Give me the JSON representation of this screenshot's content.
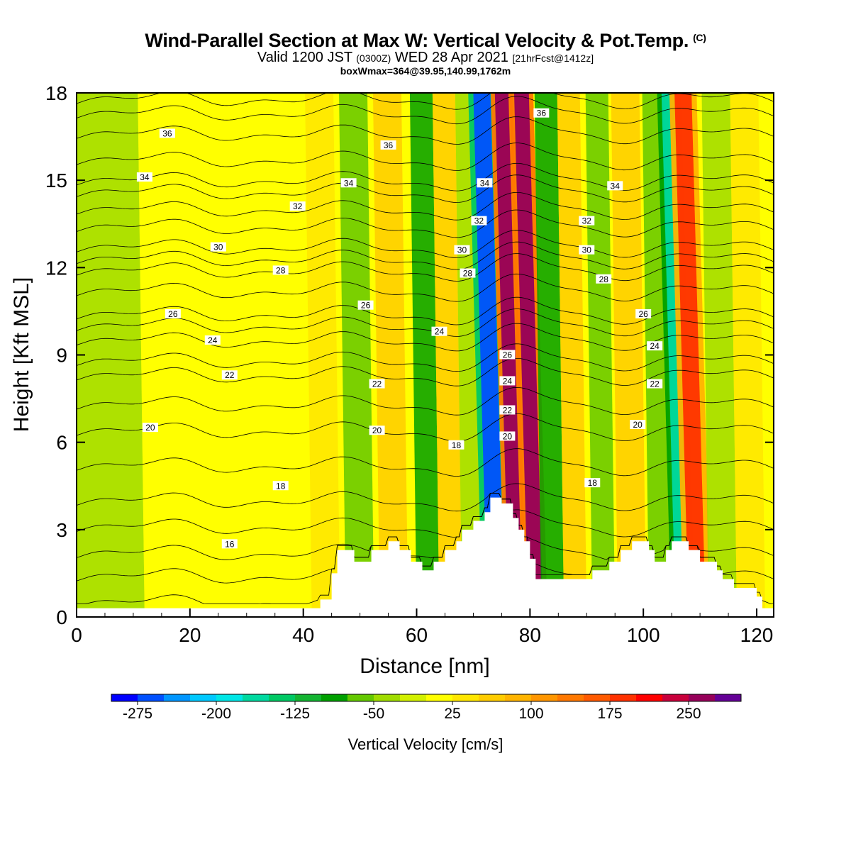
{
  "header": {
    "title": "Wind-Parallel Section at Max W: Vertical Velocity & Pot.Temp.",
    "title_mark": "(C)",
    "subtitle_a": "Valid 1200 JST",
    "subtitle_b": "(0300Z)",
    "subtitle_c": "WED 28 Apr 2021",
    "subtitle_d": "[21hrFcst@1412z]",
    "subtitle_line3": "boxWmax=364@39.95,140.99,1762m"
  },
  "chart_data": {
    "type": "heatmap",
    "xlabel": "Distance [nm]",
    "ylabel": "Height [Kft MSL]",
    "xlim": [
      0,
      123
    ],
    "ylim": [
      0,
      18
    ],
    "x_ticks": [
      0,
      20,
      40,
      60,
      80,
      100,
      120
    ],
    "y_ticks": [
      0,
      3,
      6,
      9,
      12,
      15,
      18
    ],
    "grid": false,
    "colorbar": {
      "label": "Vertical Velocity [cm/s]",
      "tick_labels": [
        "-275",
        "-200",
        "-125",
        "-50",
        "25",
        "100",
        "175",
        "250"
      ],
      "tick_values": [
        -275,
        -200,
        -125,
        -50,
        25,
        100,
        175,
        250
      ],
      "min": -300,
      "max": 275,
      "step": 25,
      "colors": [
        "#0000ff",
        "#0050ff",
        "#0096ff",
        "#00c8ff",
        "#00e6e6",
        "#00d9a0",
        "#00c864",
        "#14b432",
        "#00a000",
        "#64c800",
        "#a0dc00",
        "#d2f000",
        "#ffff00",
        "#ffe600",
        "#ffcc00",
        "#ffb400",
        "#ff9600",
        "#ff7800",
        "#ff5a00",
        "#ff3200",
        "#ff0000",
        "#c8003c",
        "#96005a",
        "#640096"
      ]
    },
    "velocity_bands": [
      {
        "x": 5,
        "width": 7,
        "w": -30
      },
      {
        "x": 16,
        "width": 4,
        "w": 8
      },
      {
        "x": 34,
        "width": 3,
        "w": 8
      },
      {
        "x": 44,
        "width": 2.5,
        "w": 45
      },
      {
        "x": 50,
        "width": 2.5,
        "w": -55
      },
      {
        "x": 56,
        "width": 2.5,
        "w": 60
      },
      {
        "x": 62,
        "width": 2,
        "w": -90
      },
      {
        "x": 66,
        "width": 2,
        "w": 65
      },
      {
        "x": 70,
        "width": 2,
        "w": -45
      },
      {
        "x": 74,
        "width": 1.5,
        "w": -260
      },
      {
        "x": 77.5,
        "width": 1.2,
        "w": 260
      },
      {
        "x": 81,
        "width": 1.3,
        "w": 250
      },
      {
        "x": 84,
        "width": 2,
        "w": -90
      },
      {
        "x": 88,
        "width": 2,
        "w": 50
      },
      {
        "x": 93,
        "width": 2,
        "w": -70
      },
      {
        "x": 98,
        "width": 2.5,
        "w": 55
      },
      {
        "x": 103,
        "width": 2,
        "w": -60
      },
      {
        "x": 107,
        "width": 1.3,
        "w": -170
      },
      {
        "x": 109.5,
        "width": 1.5,
        "w": 180
      },
      {
        "x": 114,
        "width": 2.5,
        "w": -40
      },
      {
        "x": 119,
        "width": 2.5,
        "w": 45
      }
    ],
    "terrain": [
      [
        0,
        0.3
      ],
      [
        43,
        0.3
      ],
      [
        43,
        0.6
      ],
      [
        45,
        0.6
      ],
      [
        45,
        1.5
      ],
      [
        46,
        1.5
      ],
      [
        46,
        2.3
      ],
      [
        49,
        2.3
      ],
      [
        49,
        1.9
      ],
      [
        52,
        1.9
      ],
      [
        52,
        2.3
      ],
      [
        55,
        2.3
      ],
      [
        55,
        2.6
      ],
      [
        57,
        2.6
      ],
      [
        57,
        2.3
      ],
      [
        59,
        2.3
      ],
      [
        59,
        1.9
      ],
      [
        61,
        1.9
      ],
      [
        61,
        1.6
      ],
      [
        63,
        1.6
      ],
      [
        63,
        1.9
      ],
      [
        65,
        1.9
      ],
      [
        65,
        2.3
      ],
      [
        67,
        2.3
      ],
      [
        67,
        2.6
      ],
      [
        68,
        2.6
      ],
      [
        68,
        3.0
      ],
      [
        70,
        3.0
      ],
      [
        70,
        3.3
      ],
      [
        72,
        3.3
      ],
      [
        72,
        3.6
      ],
      [
        73,
        3.6
      ],
      [
        73,
        4.1
      ],
      [
        75,
        4.1
      ],
      [
        75,
        3.9
      ],
      [
        77,
        3.9
      ],
      [
        77,
        3.4
      ],
      [
        78,
        3.4
      ],
      [
        78,
        3.0
      ],
      [
        79,
        3.0
      ],
      [
        79,
        2.6
      ],
      [
        80,
        2.6
      ],
      [
        80,
        2.0
      ],
      [
        81,
        2.0
      ],
      [
        81,
        1.3
      ],
      [
        91,
        1.3
      ],
      [
        91,
        1.6
      ],
      [
        94,
        1.6
      ],
      [
        94,
        1.9
      ],
      [
        96,
        1.9
      ],
      [
        96,
        2.3
      ],
      [
        98,
        2.3
      ],
      [
        98,
        2.6
      ],
      [
        101,
        2.6
      ],
      [
        101,
        2.3
      ],
      [
        102,
        2.3
      ],
      [
        102,
        1.9
      ],
      [
        104,
        1.9
      ],
      [
        104,
        2.3
      ],
      [
        105,
        2.3
      ],
      [
        105,
        2.6
      ],
      [
        108,
        2.6
      ],
      [
        108,
        2.3
      ],
      [
        110,
        2.3
      ],
      [
        110,
        1.9
      ],
      [
        113,
        1.9
      ],
      [
        113,
        1.6
      ],
      [
        114,
        1.6
      ],
      [
        114,
        1.3
      ],
      [
        116,
        1.3
      ],
      [
        116,
        1.0
      ],
      [
        120,
        1.0
      ],
      [
        120,
        0.7
      ],
      [
        121,
        0.7
      ],
      [
        121,
        0.3
      ],
      [
        123,
        0.3
      ]
    ],
    "isentropes": [
      {
        "theta": 14,
        "h": 0.5
      },
      {
        "theta": 15,
        "h": 1.4
      },
      {
        "theta": 16,
        "h": 2.2
      },
      {
        "theta": 17,
        "h": 3.1
      },
      {
        "theta": 18,
        "h": 4.0
      },
      {
        "theta": 19,
        "h": 5.2
      },
      {
        "theta": 20,
        "h": 6.4
      },
      {
        "theta": 21,
        "h": 7.3
      },
      {
        "theta": 22,
        "h": 8.3
      },
      {
        "theta": 23,
        "h": 8.8
      },
      {
        "theta": 24,
        "h": 9.5
      },
      {
        "theta": 25,
        "h": 10.0
      },
      {
        "theta": 26,
        "h": 10.4
      },
      {
        "theta": 27,
        "h": 11.2
      },
      {
        "theta": 28,
        "h": 11.9
      },
      {
        "theta": 29,
        "h": 12.3
      },
      {
        "theta": 30,
        "h": 12.7
      },
      {
        "theta": 31,
        "h": 13.4
      },
      {
        "theta": 32,
        "h": 14.0
      },
      {
        "theta": 33,
        "h": 14.6
      },
      {
        "theta": 34,
        "h": 15.0
      },
      {
        "theta": 35,
        "h": 15.7
      },
      {
        "theta": 36,
        "h": 16.6
      },
      {
        "theta": 37,
        "h": 17.3
      },
      {
        "theta": 38,
        "h": 17.8
      }
    ],
    "contour_labels": [
      {
        "text": "36",
        "x": 16,
        "y": 16.6
      },
      {
        "text": "36",
        "x": 55,
        "y": 16.2
      },
      {
        "text": "36",
        "x": 82,
        "y": 17.3
      },
      {
        "text": "34",
        "x": 12,
        "y": 15.1
      },
      {
        "text": "34",
        "x": 48,
        "y": 14.9
      },
      {
        "text": "34",
        "x": 72,
        "y": 14.9
      },
      {
        "text": "34",
        "x": 95,
        "y": 14.8
      },
      {
        "text": "32",
        "x": 39,
        "y": 14.1
      },
      {
        "text": "32",
        "x": 71,
        "y": 13.6
      },
      {
        "text": "32",
        "x": 90,
        "y": 13.6
      },
      {
        "text": "30",
        "x": 25,
        "y": 12.7
      },
      {
        "text": "30",
        "x": 68,
        "y": 12.6
      },
      {
        "text": "30",
        "x": 90,
        "y": 12.6
      },
      {
        "text": "28",
        "x": 36,
        "y": 11.9
      },
      {
        "text": "28",
        "x": 69,
        "y": 11.8
      },
      {
        "text": "28",
        "x": 93,
        "y": 11.6
      },
      {
        "text": "26",
        "x": 17,
        "y": 10.4
      },
      {
        "text": "26",
        "x": 51,
        "y": 10.7
      },
      {
        "text": "26",
        "x": 100,
        "y": 10.4
      },
      {
        "text": "26",
        "x": 76,
        "y": 9.0
      },
      {
        "text": "24",
        "x": 24,
        "y": 9.5
      },
      {
        "text": "24",
        "x": 64,
        "y": 9.8
      },
      {
        "text": "24",
        "x": 102,
        "y": 9.3
      },
      {
        "text": "24",
        "x": 76,
        "y": 8.1
      },
      {
        "text": "22",
        "x": 27,
        "y": 8.3
      },
      {
        "text": "22",
        "x": 53,
        "y": 8.0
      },
      {
        "text": "22",
        "x": 102,
        "y": 8.0
      },
      {
        "text": "22",
        "x": 76,
        "y": 7.1
      },
      {
        "text": "20",
        "x": 13,
        "y": 6.5
      },
      {
        "text": "20",
        "x": 53,
        "y": 6.4
      },
      {
        "text": "20",
        "x": 99,
        "y": 6.6
      },
      {
        "text": "20",
        "x": 76,
        "y": 6.2
      },
      {
        "text": "18",
        "x": 36,
        "y": 4.5
      },
      {
        "text": "18",
        "x": 67,
        "y": 5.9
      },
      {
        "text": "18",
        "x": 91,
        "y": 4.6
      },
      {
        "text": "16",
        "x": 27,
        "y": 2.5
      }
    ]
  }
}
